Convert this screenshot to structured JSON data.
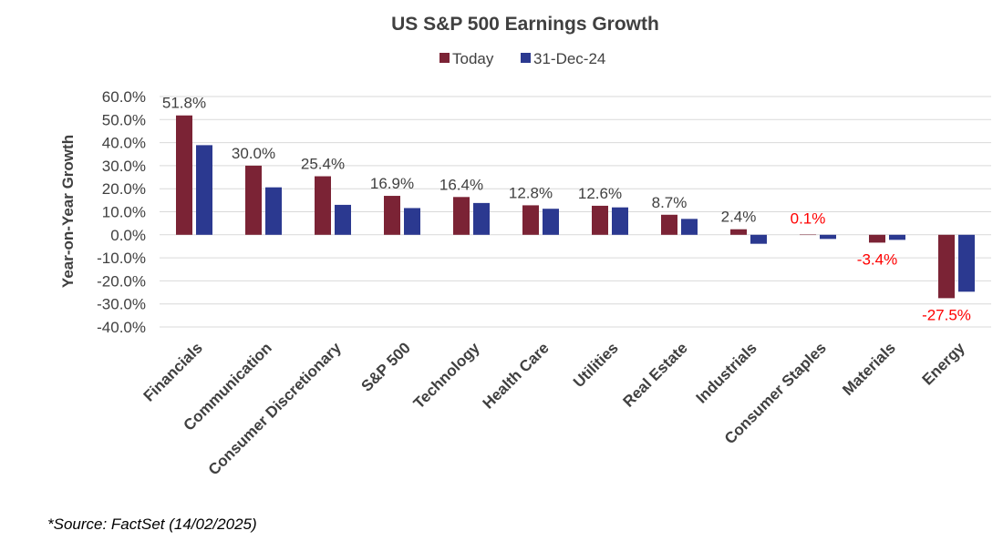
{
  "chart_data": {
    "type": "bar",
    "title": "US S&P 500 Earnings Growth",
    "xlabel": "",
    "ylabel": "Year-on-Year Growth",
    "categories": [
      "Financials",
      "Communication",
      "Consumer Discretionary",
      "S&P 500",
      "Technology",
      "Health Care",
      "Utilities",
      "Real Estate",
      "Industrials",
      "Consumer Staples",
      "Materials",
      "Energy"
    ],
    "series": [
      {
        "name": "Today",
        "color": "#7B2335",
        "values": [
          51.8,
          30.0,
          25.4,
          16.9,
          16.4,
          12.8,
          12.6,
          8.7,
          2.4,
          0.1,
          -3.4,
          -27.5
        ]
      },
      {
        "name": "31-Dec-24",
        "color": "#2B3990",
        "values": [
          38.9,
          20.6,
          13.0,
          11.6,
          13.8,
          11.3,
          11.9,
          6.9,
          -3.9,
          -1.8,
          -2.2,
          -24.7
        ]
      }
    ],
    "data_labels": [
      {
        "text": "51.8%",
        "category": "Financials",
        "color": "#404040"
      },
      {
        "text": "30.0%",
        "category": "Communication",
        "color": "#404040"
      },
      {
        "text": "25.4%",
        "category": "Consumer Discretionary",
        "color": "#404040"
      },
      {
        "text": "16.9%",
        "category": "S&P 500",
        "color": "#404040"
      },
      {
        "text": "16.4%",
        "category": "Technology",
        "color": "#404040"
      },
      {
        "text": "12.8%",
        "category": "Health Care",
        "color": "#404040"
      },
      {
        "text": "12.6%",
        "category": "Utilities",
        "color": "#404040"
      },
      {
        "text": "8.7%",
        "category": "Real Estate",
        "color": "#404040"
      },
      {
        "text": "2.4%",
        "category": "Industrials",
        "color": "#404040"
      },
      {
        "text": "0.1%",
        "category": "Consumer Staples",
        "color": "#FF0000"
      },
      {
        "text": "-3.4%",
        "category": "Materials",
        "color": "#FF0000"
      },
      {
        "text": "-27.5%",
        "category": "Energy",
        "color": "#FF0000"
      }
    ],
    "ylim": [
      -40,
      60
    ],
    "yticks": [
      60,
      50,
      40,
      30,
      20,
      10,
      0,
      -10,
      -20,
      -30,
      -40
    ],
    "ytick_labels": [
      "60.0%",
      "50.0%",
      "40.0%",
      "30.0%",
      "20.0%",
      "10.0%",
      "0.0%",
      "-10.0%",
      "-20.0%",
      "-30.0%",
      "-40.0%"
    ],
    "grid": true,
    "legend_position": "top-center"
  },
  "footnote": "*Source: FactSet (14/02/2025)"
}
